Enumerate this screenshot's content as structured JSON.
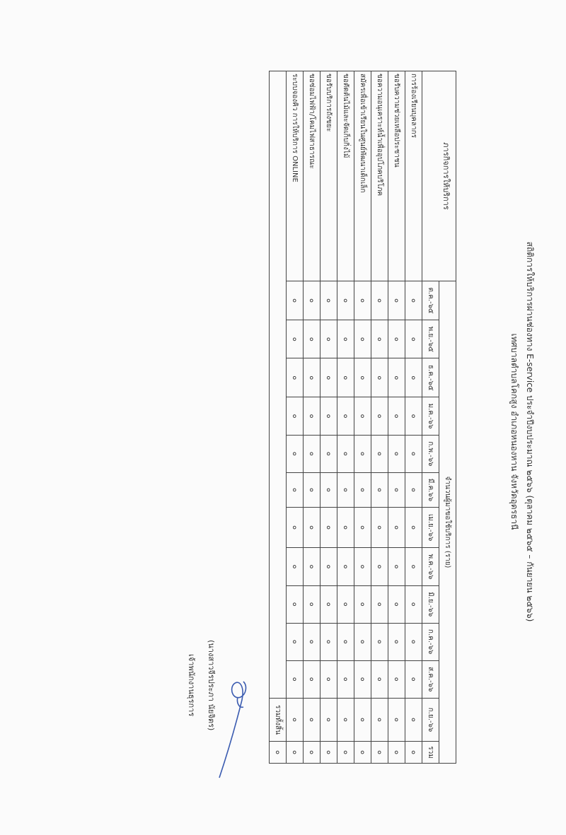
{
  "title": "สถิติการให้บริการผ่านช่องทาง E-service ประจำปีงบประมาณ ๒๕๖๖ (ตุลาคม ๒๕๖๕ – กันยายน ๒๕๖๖)",
  "subtitle": "เทศบาลตำบลโคกสูง อำเภอหนองหาน จังหวัดอุดรธานี",
  "table": {
    "task_header": "ภารกิจการให้บริการ",
    "count_header": "จำนวนผู้มาขอใช้บริการ (ราย)",
    "months": [
      "ต.ค.-๖๕",
      "พ.ย.-๖๕",
      "ธ.ค.-๖๕",
      "ม.ค.-๖๖",
      "ก.พ.-๖๖",
      "มี.ค.๖๖",
      "เม.ย.-๖๖",
      "พ.ค.-๖๖",
      "มิ.ย.-๖๖",
      "ก.ค.-๖๖",
      "ส.ค.-๖๖",
      "ก.ย.-๖๖",
      "รวม"
    ],
    "rows": [
      {
        "task": "การร้องเรียนบุคลากร",
        "values": [
          "๐",
          "๐",
          "๐",
          "๐",
          "๐",
          "๐",
          "๐",
          "๐",
          "๐",
          "๐",
          "๐",
          "๐",
          "๐"
        ]
      },
      {
        "task": "ขอรับความช่วยเหลือประชาชน",
        "values": [
          "๐",
          "๐",
          "๐",
          "๐",
          "๐",
          "๐",
          "๐",
          "๐",
          "๐",
          "๐",
          "๐",
          "๐",
          "๐"
        ]
      },
      {
        "task": "ขอความอนุเคราะห์น้ำเพื่ออุปโภคบริโภค",
        "values": [
          "๐",
          "๐",
          "๐",
          "๐",
          "๐",
          "๐",
          "๐",
          "๐",
          "๐",
          "๐",
          "๐",
          "๐",
          "๐"
        ]
      },
      {
        "task": "สมัครเพื่อเข้าเรียนในศูนย์พัฒนาเด็กเล็ก",
        "values": [
          "๐",
          "๐",
          "๐",
          "๐",
          "๐",
          "๐",
          "๐",
          "๐",
          "๐",
          "๐",
          "๐",
          "๐",
          "๐"
        ]
      },
      {
        "task": "ขอตัดต้นไม้และจัดเก็บกิ่งไม้",
        "values": [
          "๐",
          "๐",
          "๐",
          "๐",
          "๐",
          "๐",
          "๐",
          "๐",
          "๐",
          "๐",
          "๐",
          "๐",
          "๐"
        ]
      },
      {
        "task": "ขอรับบริการถังขยะ",
        "values": [
          "๐",
          "๐",
          "๐",
          "๐",
          "๐",
          "๐",
          "๐",
          "๐",
          "๐",
          "๐",
          "๐",
          "๐",
          "๐"
        ]
      },
      {
        "task": "ขอซ่อมไฟฟ้า/โคมไฟสาธารณะ",
        "values": [
          "๐",
          "๐",
          "๐",
          "๐",
          "๐",
          "๐",
          "๐",
          "๐",
          "๐",
          "๐",
          "๐",
          "๐",
          "๐"
        ]
      },
      {
        "task": "ระบบจองคิว การให้บริการ ONLINE",
        "values": [
          "๐",
          "๐",
          "๐",
          "๐",
          "๐",
          "๐",
          "๐",
          "๐",
          "๐",
          "๐",
          "๐",
          "๐",
          "๐"
        ]
      }
    ],
    "total_label": "รวมทั้งสิ้น",
    "total_value": "๐"
  },
  "signature": {
    "name": "(นางสาวจีรประภา  นัยจิตร)",
    "position": "เจ้าพนักงานธุรการ",
    "ink_color": "#3a5bb0"
  }
}
